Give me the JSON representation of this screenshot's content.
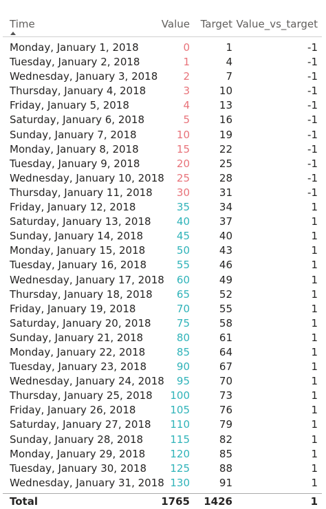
{
  "table": {
    "headers": {
      "time": "Time",
      "value": "Value",
      "target": "Target",
      "vvt": "Value_vs_target"
    },
    "rows": [
      {
        "time": "Monday, January 1, 2018",
        "value": "0",
        "target": "1",
        "vvt": "-1"
      },
      {
        "time": "Tuesday, January 2, 2018",
        "value": "1",
        "target": "4",
        "vvt": "-1"
      },
      {
        "time": "Wednesday, January 3, 2018",
        "value": "2",
        "target": "7",
        "vvt": "-1"
      },
      {
        "time": "Thursday, January 4, 2018",
        "value": "3",
        "target": "10",
        "vvt": "-1"
      },
      {
        "time": "Friday, January 5, 2018",
        "value": "4",
        "target": "13",
        "vvt": "-1"
      },
      {
        "time": "Saturday, January 6, 2018",
        "value": "5",
        "target": "16",
        "vvt": "-1"
      },
      {
        "time": "Sunday, January 7, 2018",
        "value": "10",
        "target": "19",
        "vvt": "-1"
      },
      {
        "time": "Monday, January 8, 2018",
        "value": "15",
        "target": "22",
        "vvt": "-1"
      },
      {
        "time": "Tuesday, January 9, 2018",
        "value": "20",
        "target": "25",
        "vvt": "-1"
      },
      {
        "time": "Wednesday, January 10, 2018",
        "value": "25",
        "target": "28",
        "vvt": "-1"
      },
      {
        "time": "Thursday, January 11, 2018",
        "value": "30",
        "target": "31",
        "vvt": "-1"
      },
      {
        "time": "Friday, January 12, 2018",
        "value": "35",
        "target": "34",
        "vvt": "1"
      },
      {
        "time": "Saturday, January 13, 2018",
        "value": "40",
        "target": "37",
        "vvt": "1"
      },
      {
        "time": "Sunday, January 14, 2018",
        "value": "45",
        "target": "40",
        "vvt": "1"
      },
      {
        "time": "Monday, January 15, 2018",
        "value": "50",
        "target": "43",
        "vvt": "1"
      },
      {
        "time": "Tuesday, January 16, 2018",
        "value": "55",
        "target": "46",
        "vvt": "1"
      },
      {
        "time": "Wednesday, January 17, 2018",
        "value": "60",
        "target": "49",
        "vvt": "1"
      },
      {
        "time": "Thursday, January 18, 2018",
        "value": "65",
        "target": "52",
        "vvt": "1"
      },
      {
        "time": "Friday, January 19, 2018",
        "value": "70",
        "target": "55",
        "vvt": "1"
      },
      {
        "time": "Saturday, January 20, 2018",
        "value": "75",
        "target": "58",
        "vvt": "1"
      },
      {
        "time": "Sunday, January 21, 2018",
        "value": "80",
        "target": "61",
        "vvt": "1"
      },
      {
        "time": "Monday, January 22, 2018",
        "value": "85",
        "target": "64",
        "vvt": "1"
      },
      {
        "time": "Tuesday, January 23, 2018",
        "value": "90",
        "target": "67",
        "vvt": "1"
      },
      {
        "time": "Wednesday, January 24, 2018",
        "value": "95",
        "target": "70",
        "vvt": "1"
      },
      {
        "time": "Thursday, January 25, 2018",
        "value": "100",
        "target": "73",
        "vvt": "1"
      },
      {
        "time": "Friday, January 26, 2018",
        "value": "105",
        "target": "76",
        "vvt": "1"
      },
      {
        "time": "Saturday, January 27, 2018",
        "value": "110",
        "target": "79",
        "vvt": "1"
      },
      {
        "time": "Sunday, January 28, 2018",
        "value": "115",
        "target": "82",
        "vvt": "1"
      },
      {
        "time": "Monday, January 29, 2018",
        "value": "120",
        "target": "85",
        "vvt": "1"
      },
      {
        "time": "Tuesday, January 30, 2018",
        "value": "125",
        "target": "88",
        "vvt": "1"
      },
      {
        "time": "Wednesday, January 31, 2018",
        "value": "130",
        "target": "91",
        "vvt": "1"
      }
    ],
    "total": {
      "label": "Total",
      "value": "1765",
      "target": "1426",
      "vvt": "1"
    },
    "sort": {
      "column": "time",
      "direction": "ascending",
      "icon": "sort-ascending-icon"
    },
    "colors": {
      "negative_value": "#e8737a",
      "positive_value": "#2fb3b9"
    }
  }
}
